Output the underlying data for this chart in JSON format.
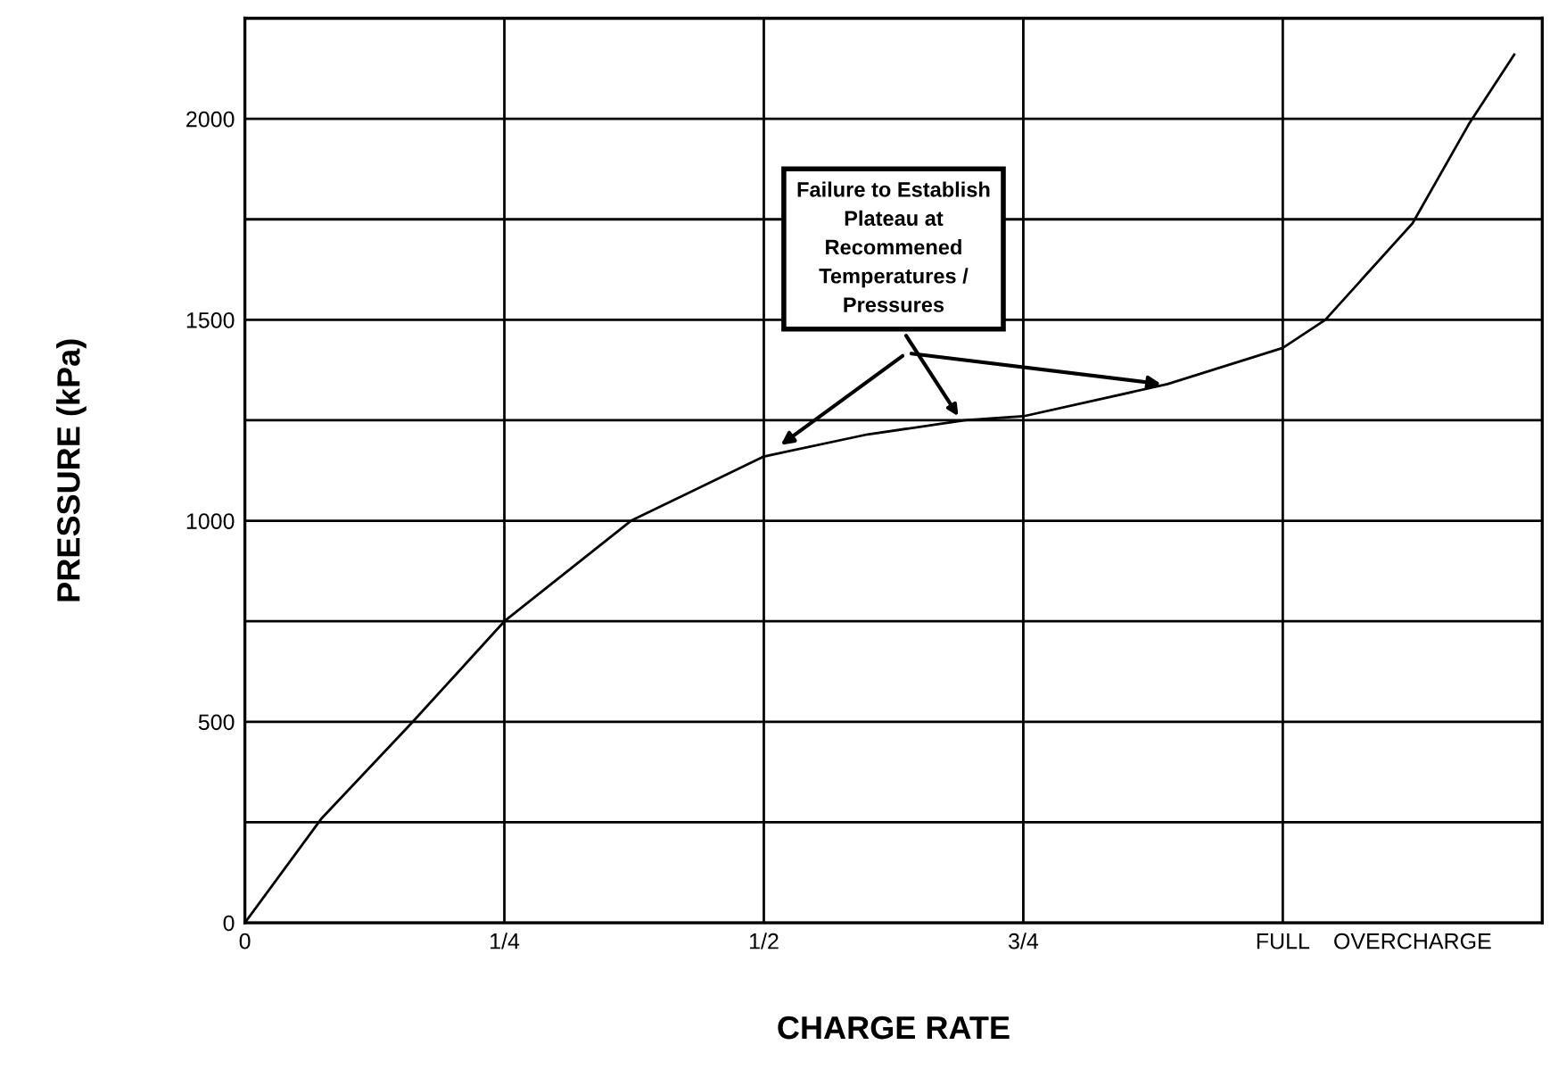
{
  "chart_data": {
    "type": "line",
    "xlabel": "CHARGE RATE",
    "ylabel": "PRESSURE (kPa)",
    "x": [
      0,
      0.074,
      0.16,
      0.25,
      0.372,
      0.5,
      0.6,
      0.694,
      0.75,
      0.889,
      1.0,
      1.041,
      1.125,
      1.18,
      1.223
    ],
    "series": [
      {
        "color": "#000000",
        "values": [
          0,
          260,
          495,
          750,
          1000,
          1160,
          1215,
          1250,
          1260,
          1340,
          1430,
          1500,
          1740,
          1990,
          2160
        ]
      }
    ],
    "xlim": [
      0,
      1.25
    ],
    "xticks": [
      {
        "value": 0,
        "label": "0"
      },
      {
        "value": 0.25,
        "label": "1/4"
      },
      {
        "value": 0.5,
        "label": "1/2"
      },
      {
        "value": 0.75,
        "label": "3/4"
      },
      {
        "value": 1.0,
        "label": "FULL"
      },
      {
        "value": 1.125,
        "label": "OVERCHARGE"
      }
    ],
    "ylim": [
      0,
      2250
    ],
    "yticks": [
      0,
      {
        "value": 250,
        "label": null
      },
      500,
      {
        "value": 750,
        "label": null
      },
      1000,
      {
        "value": 1250,
        "label": null
      },
      1500,
      {
        "value": 1750,
        "label": null
      },
      2000
    ],
    "grid": true,
    "marker": "none",
    "line_style": "solid",
    "legend": false,
    "annotations": [
      {
        "text": "Failure to Establish\nPlateau at\nRecommened\nTemperatures /\nPressures",
        "x": 0.69,
        "y": 1250
      }
    ]
  }
}
